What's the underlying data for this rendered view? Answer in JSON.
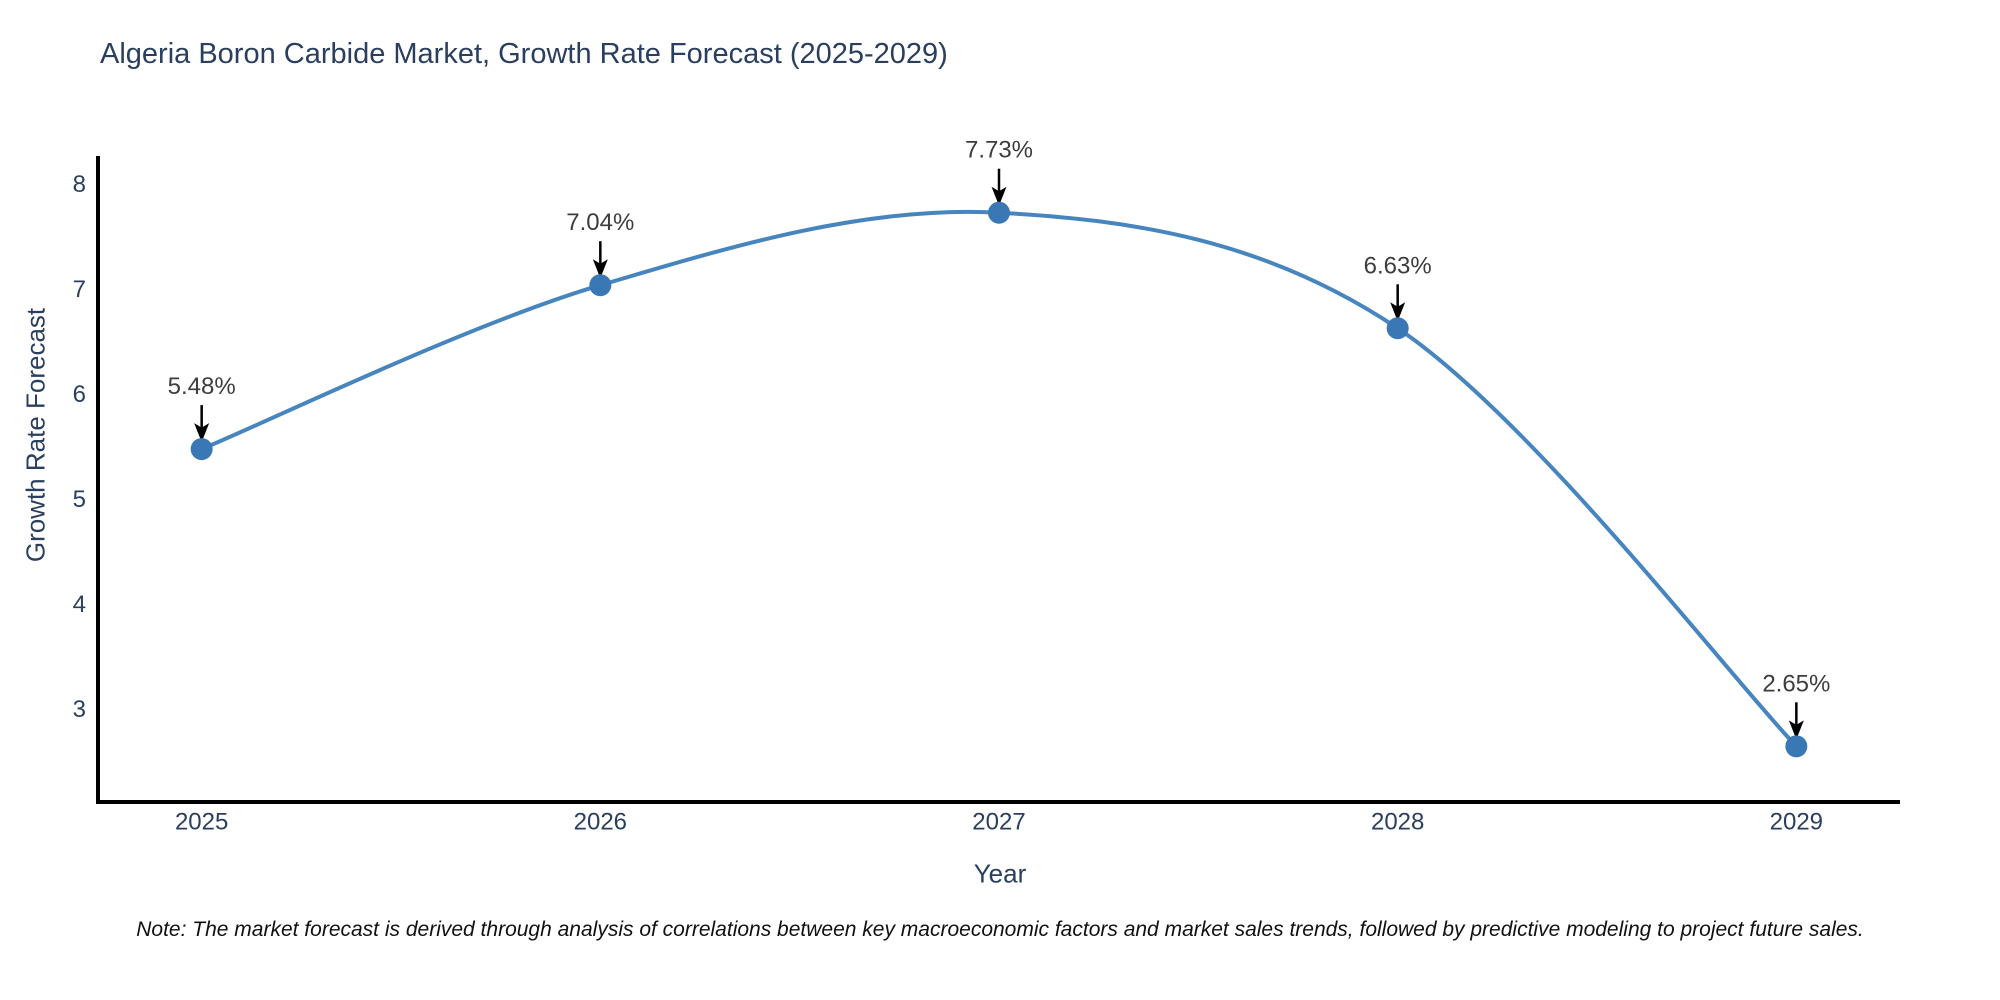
{
  "title": "Algeria Boron Carbide Market, Growth Rate Forecast (2025-2029)",
  "note": "Note: The market forecast is derived through analysis of correlations between key macroeconomic factors and market sales trends, followed by predictive modeling to project future sales.",
  "chart_data": {
    "type": "line",
    "line_shape": "spline",
    "x": [
      2025,
      2026,
      2027,
      2028,
      2029
    ],
    "values": [
      5.48,
      7.04,
      7.73,
      6.63,
      2.65
    ],
    "point_labels": [
      "5.48%",
      "7.04%",
      "7.73%",
      "6.63%",
      "2.65%"
    ],
    "title": "Algeria Boron Carbide Market, Growth Rate Forecast (2025-2029)",
    "xlabel": "Year",
    "ylabel": "Growth Rate Forecast",
    "xticks": [
      "2025",
      "2026",
      "2027",
      "2028",
      "2029"
    ],
    "yticks": [
      3,
      4,
      5,
      6,
      7,
      8
    ],
    "xlim": [
      2024.74,
      2029.26
    ],
    "ylim": [
      2.12,
      8.27
    ],
    "grid": false,
    "legend": "none",
    "colors": {
      "line": "#4785bf",
      "marker": "#3a78b5",
      "axis": "#000000",
      "tick_text": "#2a3f5f",
      "annotation_text": "#3d3d3d",
      "arrow": "#000000"
    }
  }
}
